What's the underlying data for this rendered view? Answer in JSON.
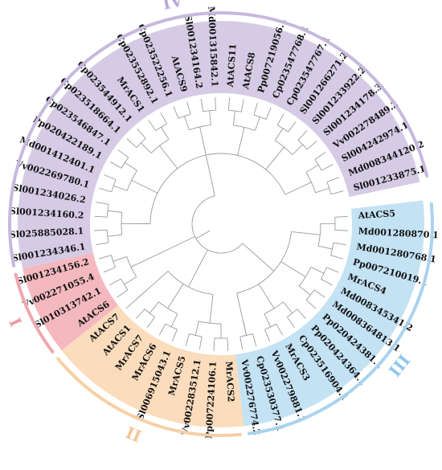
{
  "figure": {
    "groups": [
      {
        "label": "I",
        "sector_color": "#f4b9bf",
        "arc_color": "#f0a6ad",
        "label_color": "#ef9aa2"
      },
      {
        "label": "II",
        "sector_color": "#fbdcbc",
        "arc_color": "#f7cfa5",
        "label_color": "#f3c596"
      },
      {
        "label": "III",
        "sector_color": "#c3e2f4",
        "arc_color": "#a9d3ee",
        "label_color": "#8ec6ea"
      },
      {
        "label": "IV",
        "sector_color": "#d6cbe5",
        "arc_color": "#c7b8dd",
        "label_color": "#b9a7d6"
      }
    ],
    "leaves": [
      {
        "name": "AtACS5",
        "group": 2
      },
      {
        "name": "Md001280870.1",
        "group": 2
      },
      {
        "name": "Md001280768.1",
        "group": 2
      },
      {
        "name": "Pp007210019.1",
        "group": 2
      },
      {
        "name": "MrACS4",
        "group": 2
      },
      {
        "name": "Md008345341.2",
        "group": 2
      },
      {
        "name": "Md008364813.1",
        "group": 2
      },
      {
        "name": "Pp020424381.1",
        "group": 2
      },
      {
        "name": "Pp020424364.1",
        "group": 2
      },
      {
        "name": "Cp023516904.1",
        "group": 2
      },
      {
        "name": "MrACS3",
        "group": 2
      },
      {
        "name": "Vv002279881.1",
        "group": 2
      },
      {
        "name": "Cp023530377.1",
        "group": 2
      },
      {
        "name": "Vv002276774.2",
        "group": 2
      },
      {
        "name": "MrACS2",
        "group": 1
      },
      {
        "name": "Pp007224106.1",
        "group": 1
      },
      {
        "name": "Vv002283512.1",
        "group": 1
      },
      {
        "name": "MrACS5",
        "group": 1
      },
      {
        "name": "Sl006915043.1",
        "group": 1
      },
      {
        "name": "MrACS6",
        "group": 1
      },
      {
        "name": "MrACS7",
        "group": 1
      },
      {
        "name": "AtACS1",
        "group": 1
      },
      {
        "name": "AtACS7",
        "group": 1
      },
      {
        "name": "AtACS6",
        "group": 0
      },
      {
        "name": "Sl010313742.1",
        "group": 0
      },
      {
        "name": "Vv002271055.4",
        "group": 0
      },
      {
        "name": "Sl001234156.2",
        "group": 0
      },
      {
        "name": "Sl001234346.1",
        "group": 3
      },
      {
        "name": "Sl025885028.1",
        "group": 3
      },
      {
        "name": "Sl001234160.2",
        "group": 3
      },
      {
        "name": "Sl001234026.2",
        "group": 3
      },
      {
        "name": "Vv002269780.1",
        "group": 3
      },
      {
        "name": "Md001412401.1",
        "group": 3
      },
      {
        "name": "Pp020422189.1",
        "group": 3
      },
      {
        "name": "Cp023546847.1",
        "group": 3
      },
      {
        "name": "Cp023518664.1",
        "group": 3
      },
      {
        "name": "Cp023544912.1",
        "group": 3
      },
      {
        "name": "MrACS1",
        "group": 3
      },
      {
        "name": "Cp023552892.1",
        "group": 3
      },
      {
        "name": "Cp023522256.1",
        "group": 3
      },
      {
        "name": "AtACS9",
        "group": 3
      },
      {
        "name": "Sl001234164.2",
        "group": 3
      },
      {
        "name": "Md001315842.1",
        "group": 3
      },
      {
        "name": "AtACS11",
        "group": 3
      },
      {
        "name": "AtACS8",
        "group": 3
      },
      {
        "name": "Pp007219056.1",
        "group": 3
      },
      {
        "name": "Cp023547768.1",
        "group": 3
      },
      {
        "name": "Cp023547767.1",
        "group": 3
      },
      {
        "name": "Sl001266271.2",
        "group": 3
      },
      {
        "name": "Sl001233922.2",
        "group": 3
      },
      {
        "name": "Sl001234178.3",
        "group": 3
      },
      {
        "name": "Vv002278489.2",
        "group": 3
      },
      {
        "name": "Sl004242974.1",
        "group": 3
      },
      {
        "name": "Md008344120.2",
        "group": 3
      },
      {
        "name": "Sl001233875.1",
        "group": 3
      }
    ]
  }
}
